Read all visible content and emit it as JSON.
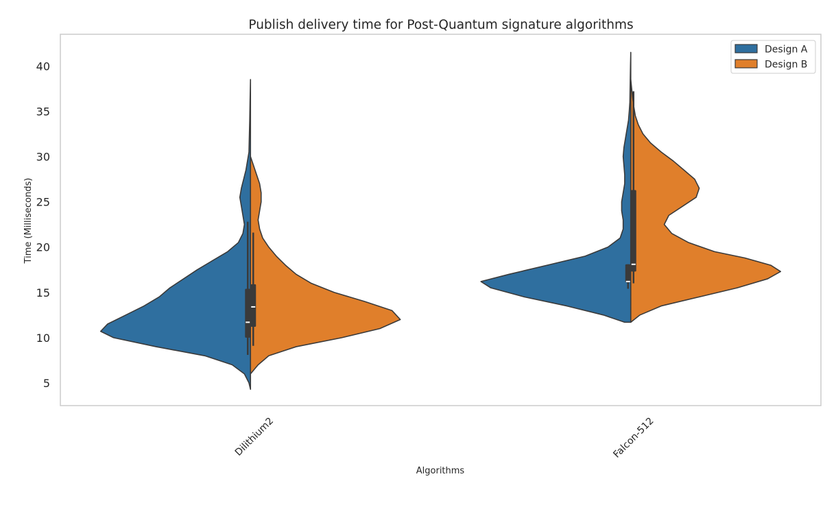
{
  "chart_data": {
    "type": "violin",
    "split": true,
    "title": "Publish delivery time for Post-Quantum signature algorithms",
    "xlabel": "Algorithms",
    "ylabel": "Time (Milliseconds)",
    "categories": [
      "Dilithium2",
      "Falcon-512"
    ],
    "ylim": [
      2.5,
      43.5
    ],
    "yticks": [
      5,
      10,
      15,
      20,
      25,
      30,
      35,
      40
    ],
    "grid": false,
    "legend_position": "top-right",
    "series": [
      {
        "name": "Design A",
        "color": "#2f6f9f",
        "violins": [
          {
            "min": 4.3,
            "max": 38.5,
            "q1": 10.0,
            "median": 11.7,
            "q3": 15.4,
            "whisker_low": 8.1,
            "whisker_high": 22.8,
            "density": [
              [
                4.3,
                0.0
              ],
              [
                5.0,
                0.01
              ],
              [
                6.0,
                0.04
              ],
              [
                7.0,
                0.12
              ],
              [
                8.0,
                0.3
              ],
              [
                9.0,
                0.62
              ],
              [
                10.0,
                0.9
              ],
              [
                10.7,
                0.985
              ],
              [
                11.5,
                0.94
              ],
              [
                12.5,
                0.82
              ],
              [
                13.5,
                0.7
              ],
              [
                14.5,
                0.6
              ],
              [
                15.5,
                0.53
              ],
              [
                16.5,
                0.44
              ],
              [
                17.5,
                0.35
              ],
              [
                18.5,
                0.25
              ],
              [
                19.5,
                0.15
              ],
              [
                20.5,
                0.08
              ],
              [
                21.5,
                0.05
              ],
              [
                22.5,
                0.04
              ],
              [
                23.5,
                0.05
              ],
              [
                24.5,
                0.06
              ],
              [
                25.5,
                0.07
              ],
              [
                26.5,
                0.06
              ],
              [
                27.5,
                0.045
              ],
              [
                28.5,
                0.03
              ],
              [
                29.5,
                0.02
              ],
              [
                30.5,
                0.01
              ],
              [
                32.0,
                0.008
              ],
              [
                34.0,
                0.005
              ],
              [
                36.0,
                0.003
              ],
              [
                38.5,
                0.0
              ]
            ]
          },
          {
            "min": 11.7,
            "max": 41.5,
            "q1": 16.1,
            "median": 16.2,
            "q3": 18.1,
            "whisker_low": 15.4,
            "whisker_high": 18.1,
            "density": [
              [
                11.7,
                0.04
              ],
              [
                12.5,
                0.18
              ],
              [
                13.5,
                0.42
              ],
              [
                14.5,
                0.7
              ],
              [
                15.5,
                0.92
              ],
              [
                16.2,
                0.985
              ],
              [
                17.0,
                0.8
              ],
              [
                18.0,
                0.55
              ],
              [
                19.0,
                0.3
              ],
              [
                20.0,
                0.15
              ],
              [
                21.0,
                0.07
              ],
              [
                22.0,
                0.05
              ],
              [
                23.0,
                0.05
              ],
              [
                24.0,
                0.06
              ],
              [
                25.0,
                0.06
              ],
              [
                26.0,
                0.05
              ],
              [
                27.0,
                0.04
              ],
              [
                28.0,
                0.04
              ],
              [
                29.0,
                0.045
              ],
              [
                30.0,
                0.05
              ],
              [
                31.0,
                0.045
              ],
              [
                32.0,
                0.035
              ],
              [
                33.0,
                0.025
              ],
              [
                34.0,
                0.015
              ],
              [
                35.0,
                0.01
              ],
              [
                36.0,
                0.006
              ],
              [
                38.0,
                0.004
              ],
              [
                40.0,
                0.002
              ],
              [
                41.5,
                0.0
              ]
            ]
          }
        ]
      },
      {
        "name": "Design B",
        "color": "#e07f2b",
        "violins": [
          {
            "min": 6.0,
            "max": 30.0,
            "q1": 11.2,
            "median": 13.4,
            "q3": 15.9,
            "whisker_low": 9.1,
            "whisker_high": 21.6,
            "density": [
              [
                6.0,
                0.0
              ],
              [
                7.0,
                0.05
              ],
              [
                8.0,
                0.12
              ],
              [
                9.0,
                0.3
              ],
              [
                10.0,
                0.6
              ],
              [
                11.0,
                0.85
              ],
              [
                12.0,
                0.985
              ],
              [
                13.0,
                0.93
              ],
              [
                14.0,
                0.75
              ],
              [
                15.0,
                0.55
              ],
              [
                16.0,
                0.4
              ],
              [
                17.0,
                0.3
              ],
              [
                18.0,
                0.23
              ],
              [
                19.0,
                0.17
              ],
              [
                20.0,
                0.12
              ],
              [
                21.0,
                0.08
              ],
              [
                22.0,
                0.06
              ],
              [
                23.0,
                0.05
              ],
              [
                24.0,
                0.06
              ],
              [
                25.0,
                0.07
              ],
              [
                26.0,
                0.07
              ],
              [
                27.0,
                0.06
              ],
              [
                28.0,
                0.04
              ],
              [
                29.0,
                0.02
              ],
              [
                30.0,
                0.0
              ]
            ]
          },
          {
            "min": 11.7,
            "max": 38.5,
            "q1": 17.3,
            "median": 18.1,
            "q3": 26.3,
            "whisker_low": 16.0,
            "whisker_high": 37.2,
            "density": [
              [
                11.7,
                0.0
              ],
              [
                12.5,
                0.06
              ],
              [
                13.5,
                0.2
              ],
              [
                14.5,
                0.45
              ],
              [
                15.5,
                0.7
              ],
              [
                16.5,
                0.9
              ],
              [
                17.3,
                0.985
              ],
              [
                18.0,
                0.92
              ],
              [
                18.8,
                0.75
              ],
              [
                19.5,
                0.55
              ],
              [
                20.5,
                0.38
              ],
              [
                21.5,
                0.27
              ],
              [
                22.5,
                0.22
              ],
              [
                23.5,
                0.25
              ],
              [
                24.5,
                0.34
              ],
              [
                25.5,
                0.43
              ],
              [
                26.5,
                0.45
              ],
              [
                27.5,
                0.42
              ],
              [
                28.5,
                0.35
              ],
              [
                29.5,
                0.28
              ],
              [
                30.5,
                0.2
              ],
              [
                31.5,
                0.13
              ],
              [
                32.5,
                0.08
              ],
              [
                33.5,
                0.05
              ],
              [
                34.5,
                0.03
              ],
              [
                35.5,
                0.02
              ],
              [
                36.5,
                0.012
              ],
              [
                37.5,
                0.006
              ],
              [
                38.5,
                0.0
              ]
            ]
          }
        ]
      }
    ]
  }
}
